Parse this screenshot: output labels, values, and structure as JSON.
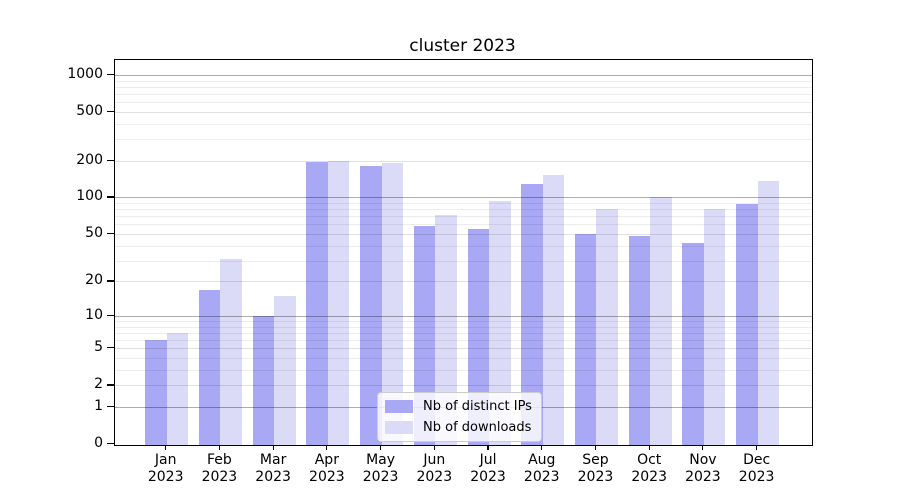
{
  "title": "cluster 2023",
  "legend": {
    "items": [
      {
        "label": "Nb of distinct IPs",
        "swatch": "ips-swatch"
      },
      {
        "label": "Nb of downloads",
        "swatch": "downloads-swatch"
      }
    ]
  },
  "colors": {
    "ips_bar": "#a8a8f5",
    "downloads_bar": "#dbdbf8",
    "grid_major": "rgba(0,0,0,0.32)",
    "grid_mid": "rgba(0,0,0,0.12)",
    "grid_minor": "rgba(0,0,0,0.07)"
  },
  "y_axis": {
    "tick_labels": [
      "0",
      "1",
      "2",
      "5",
      "10",
      "20",
      "50",
      "100",
      "200",
      "500",
      "1000"
    ]
  },
  "x_axis": {
    "year": "2023",
    "months": [
      "Jan",
      "Feb",
      "Mar",
      "Apr",
      "May",
      "Jun",
      "Jul",
      "Aug",
      "Sep",
      "Oct",
      "Nov",
      "Dec"
    ]
  },
  "chart_data": {
    "type": "bar",
    "title": "cluster 2023",
    "categories": [
      "Jan 2023",
      "Feb 2023",
      "Mar 2023",
      "Apr 2023",
      "May 2023",
      "Jun 2023",
      "Jul 2023",
      "Aug 2023",
      "Sep 2023",
      "Oct 2023",
      "Nov 2023",
      "Dec 2023"
    ],
    "series": [
      {
        "name": "Nb of distinct IPs",
        "color": "#a8a8f5",
        "values": [
          6,
          17,
          10,
          195,
          182,
          58,
          55,
          130,
          50,
          48,
          42,
          88
        ]
      },
      {
        "name": "Nb of downloads",
        "color": "#dbdbf8",
        "values": [
          7,
          31,
          15,
          199,
          190,
          72,
          93,
          152,
          80,
          100,
          80,
          137
        ]
      }
    ],
    "yscale": "symlog (log10 of value+1)",
    "y_ticks": [
      0,
      1,
      2,
      5,
      10,
      20,
      50,
      100,
      200,
      500,
      1000
    ],
    "y_minor_ticks": [
      3,
      4,
      6,
      7,
      8,
      9,
      30,
      40,
      60,
      70,
      80,
      90,
      300,
      400,
      600,
      700,
      800,
      900
    ],
    "ylim": [
      0,
      1320
    ],
    "xlabel": "",
    "ylabel": "",
    "grid": "horizontal, major and minor, drawn above bars",
    "legend_position": "lower center"
  }
}
